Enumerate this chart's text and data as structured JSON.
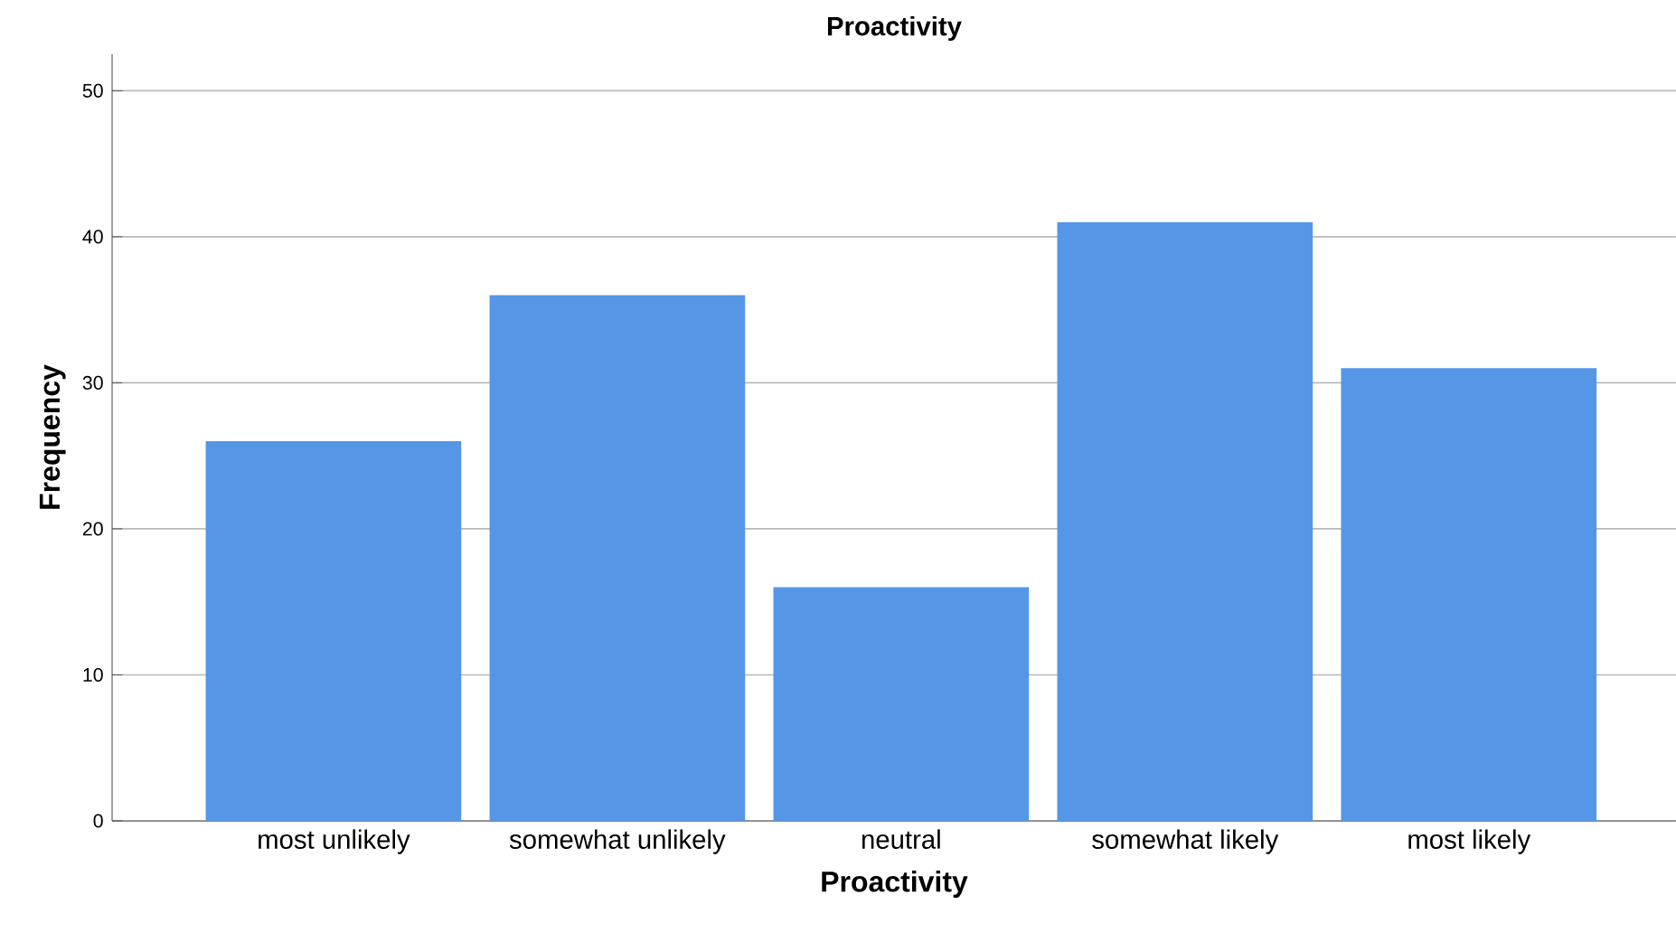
{
  "chart_data": {
    "type": "bar",
    "title": "Proactivity",
    "xlabel": "Proactivity",
    "ylabel": "Frequency",
    "categories": [
      "most unlikely",
      "somewhat unlikely",
      "neutral",
      "somewhat likely",
      "most likely"
    ],
    "values": [
      26,
      36,
      16,
      41,
      31
    ],
    "color": "#5596e6",
    "ylim": [
      0,
      52.5
    ],
    "yticks": [
      0,
      10,
      20,
      30,
      40,
      50
    ],
    "grid": "y"
  }
}
